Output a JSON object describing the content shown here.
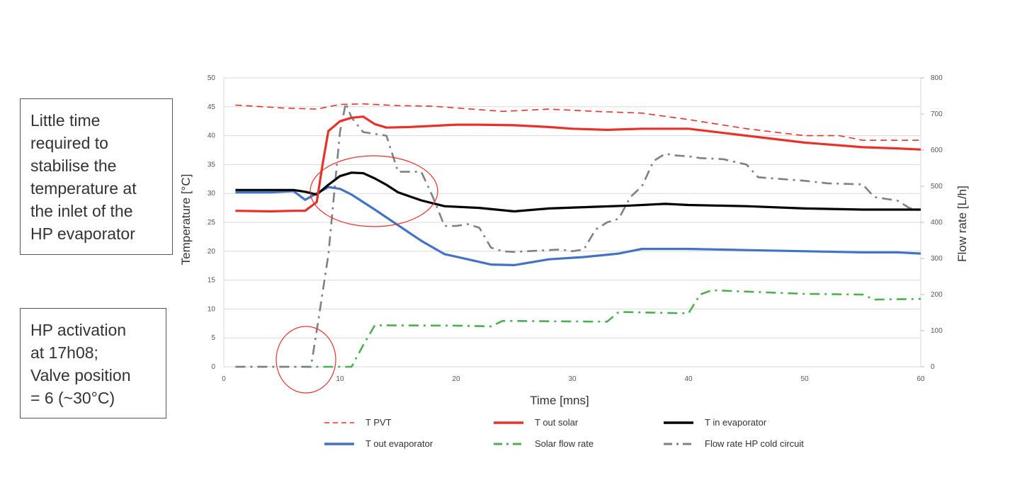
{
  "notes": {
    "stabilise": "Little time\nrequired to\nstabilise the\ntemperature at\nthe inlet of the\nHP evaporator",
    "activation": "HP activation\nat 17h08;\nValve position\n= 6 (~30°C)"
  },
  "chart_data": {
    "type": "line",
    "title": "",
    "xlabel": "Time [mns]",
    "ylabel": "Temperature [°C]",
    "y2label": "Flow rate [L/h]",
    "xlim": [
      0,
      60
    ],
    "ylim": [
      0,
      50
    ],
    "y2lim": [
      0,
      800
    ],
    "xticks": [
      0,
      10,
      20,
      30,
      40,
      50,
      60
    ],
    "yticks": [
      0,
      5,
      10,
      15,
      20,
      25,
      30,
      35,
      40,
      45,
      50
    ],
    "y2ticks": [
      0,
      100,
      200,
      300,
      400,
      500,
      600,
      700,
      800
    ],
    "grid": true,
    "legend_position": "bottom",
    "series": [
      {
        "name": "T PVT",
        "axis": "left",
        "color": "#e8312a",
        "style": "dashed",
        "x": [
          1,
          5,
          8,
          10,
          12,
          15,
          18,
          20,
          24,
          28,
          32,
          36,
          40,
          45,
          50,
          53,
          55,
          60
        ],
        "y": [
          45.3,
          44.8,
          44.6,
          45.4,
          45.5,
          45.2,
          45.1,
          44.8,
          44.2,
          44.6,
          44.2,
          43.9,
          42.8,
          41.2,
          40.0,
          40.0,
          39.2,
          39.2
        ]
      },
      {
        "name": "T out solar",
        "axis": "left",
        "color": "#e8312a",
        "style": "solid",
        "x": [
          1,
          4,
          6,
          7,
          8,
          8.5,
          9,
          10,
          11,
          12,
          13,
          14,
          16,
          20,
          22,
          25,
          28,
          30,
          33,
          36,
          40,
          45,
          50,
          55,
          58,
          60
        ],
        "y": [
          27.0,
          26.9,
          27.0,
          27.0,
          28.5,
          35.0,
          40.8,
          42.5,
          43.1,
          43.3,
          42.0,
          41.4,
          41.5,
          41.9,
          41.9,
          41.8,
          41.5,
          41.2,
          41.0,
          41.2,
          41.2,
          40.0,
          38.8,
          38.0,
          37.8,
          37.6
        ]
      },
      {
        "name": "T in evaporator",
        "axis": "left",
        "color": "#000000",
        "style": "solid",
        "x": [
          1,
          4,
          6,
          7,
          8,
          9,
          10,
          11,
          12,
          13,
          14,
          15,
          17,
          19,
          22,
          25,
          28,
          32,
          35,
          38,
          40,
          45,
          50,
          55,
          60
        ],
        "y": [
          30.6,
          30.6,
          30.6,
          30.3,
          29.8,
          31.5,
          33.0,
          33.6,
          33.5,
          32.6,
          31.5,
          30.2,
          28.8,
          27.8,
          27.5,
          26.9,
          27.4,
          27.7,
          27.9,
          28.2,
          28.0,
          27.8,
          27.4,
          27.2,
          27.2
        ]
      },
      {
        "name": "T out evaporator",
        "axis": "left",
        "color": "#4472c4",
        "style": "solid",
        "x": [
          1,
          4,
          6,
          7,
          8,
          9,
          10,
          11,
          13,
          15,
          17,
          19,
          21,
          23,
          25,
          28,
          31,
          34,
          36,
          40,
          45,
          50,
          55,
          58,
          60
        ],
        "y": [
          30.2,
          30.2,
          30.4,
          28.9,
          30.0,
          31.1,
          30.8,
          29.8,
          27.2,
          24.5,
          21.8,
          19.5,
          18.6,
          17.7,
          17.6,
          18.6,
          19.0,
          19.6,
          20.4,
          20.4,
          20.2,
          20.0,
          19.8,
          19.8,
          19.6
        ]
      },
      {
        "name": "Solar flow rate",
        "axis": "right",
        "color": "#4caf50",
        "style": "dashdot",
        "x": [
          1,
          7,
          8,
          11,
          12,
          13,
          20,
          23,
          24,
          33,
          34,
          40,
          41,
          42,
          50,
          55,
          56,
          60
        ],
        "y": [
          0,
          0,
          0,
          0,
          60,
          115,
          114,
          112,
          127,
          125,
          152,
          148,
          200,
          212,
          202,
          200,
          186,
          188
        ]
      },
      {
        "name": "Flow rate HP cold circuit",
        "axis": "right",
        "color": "#808080",
        "style": "dashdot",
        "x": [
          1,
          7,
          7.5,
          8,
          9,
          10,
          10.5,
          11,
          12,
          14,
          15,
          17,
          18,
          19,
          20,
          21,
          22,
          23,
          24,
          25,
          29,
          30,
          31,
          32,
          33,
          34,
          35,
          36,
          37,
          38,
          39,
          40,
          41,
          43,
          45,
          46,
          48,
          50,
          52,
          55,
          56,
          58,
          59,
          60
        ],
        "y": [
          0,
          0,
          0,
          100,
          310,
          650,
          730,
          690,
          650,
          640,
          540,
          540,
          470,
          390,
          390,
          395,
          385,
          330,
          320,
          318,
          325,
          320,
          325,
          380,
          400,
          410,
          470,
          500,
          570,
          590,
          585,
          583,
          578,
          575,
          560,
          525,
          520,
          515,
          508,
          505,
          470,
          460,
          440,
          432
        ]
      }
    ]
  },
  "legend": [
    {
      "label": "T PVT",
      "color": "#e8312a",
      "style": "dashed"
    },
    {
      "label": "T out solar",
      "color": "#e8312a",
      "style": "solid"
    },
    {
      "label": "T in evaporator",
      "color": "#000000",
      "style": "solid"
    },
    {
      "label": "T out evaporator",
      "color": "#4472c4",
      "style": "solid"
    },
    {
      "label": "Solar flow rate",
      "color": "#4caf50",
      "style": "dashdot"
    },
    {
      "label": "Flow rate HP cold circuit",
      "color": "#808080",
      "style": "dashdot"
    }
  ],
  "annotations": {
    "circle_color": "#e8312a"
  }
}
